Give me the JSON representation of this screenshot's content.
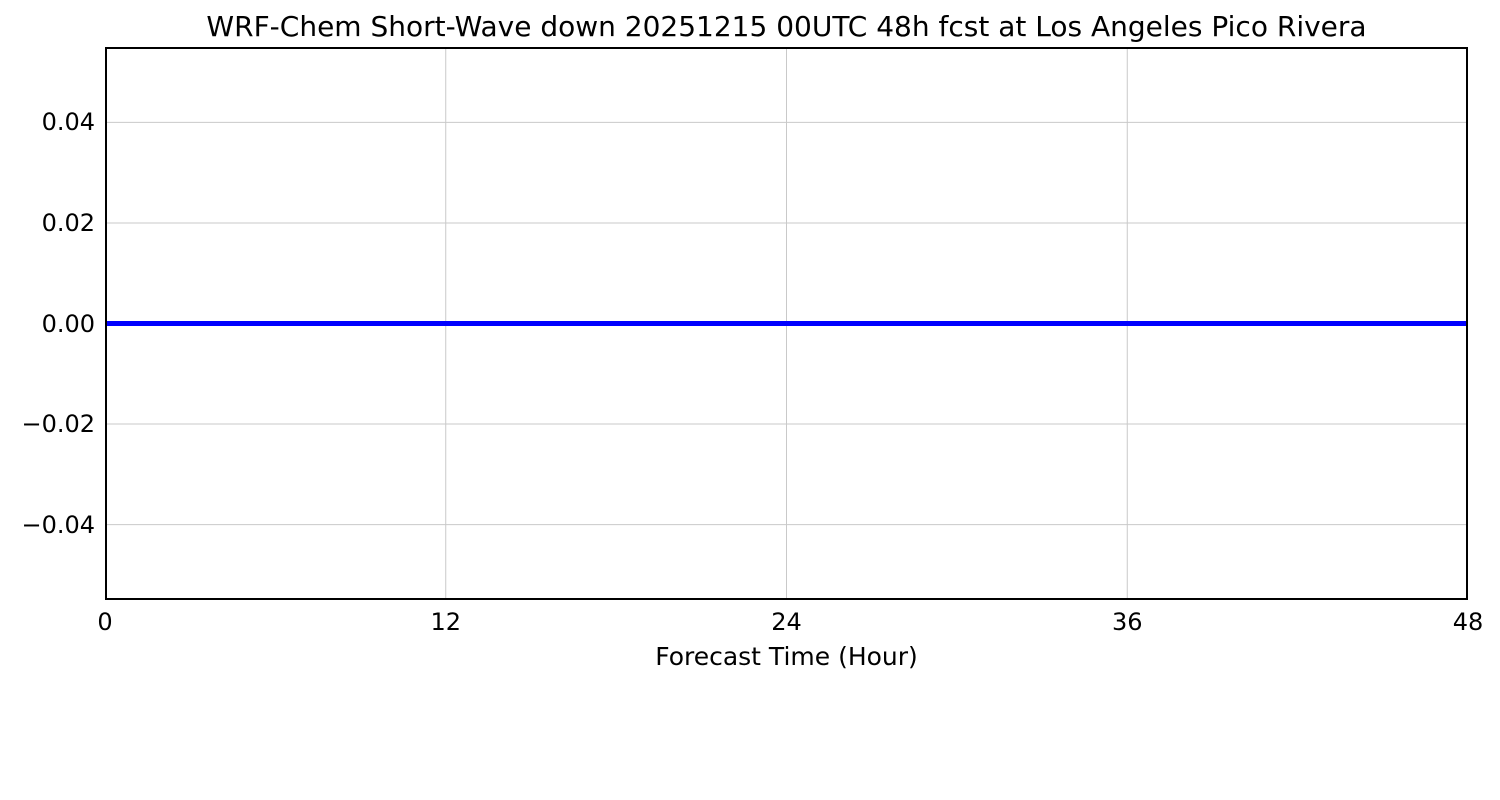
{
  "chart_data": {
    "type": "line",
    "title": "WRF-Chem Short-Wave down  20251215 00UTC 48h fcst at Los Angeles Pico Rivera",
    "xlabel": "Forecast Time (Hour)",
    "ylabel_fragment": ")",
    "xlim": [
      0,
      48
    ],
    "ylim": [
      -0.055,
      0.055
    ],
    "xticks": [
      0,
      12,
      24,
      36,
      48
    ],
    "xtick_labels": [
      "0",
      "12",
      "24",
      "36",
      "48"
    ],
    "yticks": [
      0.04,
      0.02,
      0.0,
      -0.02,
      -0.04
    ],
    "ytick_labels": [
      "0.04",
      "0.02",
      "0.00",
      "−0.02",
      "−0.04"
    ],
    "grid": true,
    "legend": "none",
    "colors": {
      "line": "#0000ff",
      "grid": "#c9c9c9",
      "frame": "#000000",
      "background": "#ffffff"
    },
    "series": [
      {
        "name": "Short-Wave down",
        "x": [
          0,
          1,
          2,
          3,
          4,
          5,
          6,
          7,
          8,
          9,
          10,
          11,
          12,
          13,
          14,
          15,
          16,
          17,
          18,
          19,
          20,
          21,
          22,
          23,
          24,
          25,
          26,
          27,
          28,
          29,
          30,
          31,
          32,
          33,
          34,
          35,
          36,
          37,
          38,
          39,
          40,
          41,
          42,
          43,
          44,
          45,
          46,
          47,
          48
        ],
        "values": [
          0,
          0,
          0,
          0,
          0,
          0,
          0,
          0,
          0,
          0,
          0,
          0,
          0,
          0,
          0,
          0,
          0,
          0,
          0,
          0,
          0,
          0,
          0,
          0,
          0,
          0,
          0,
          0,
          0,
          0,
          0,
          0,
          0,
          0,
          0,
          0,
          0,
          0,
          0,
          0,
          0,
          0,
          0,
          0,
          0,
          0,
          0,
          0,
          0
        ]
      }
    ]
  }
}
